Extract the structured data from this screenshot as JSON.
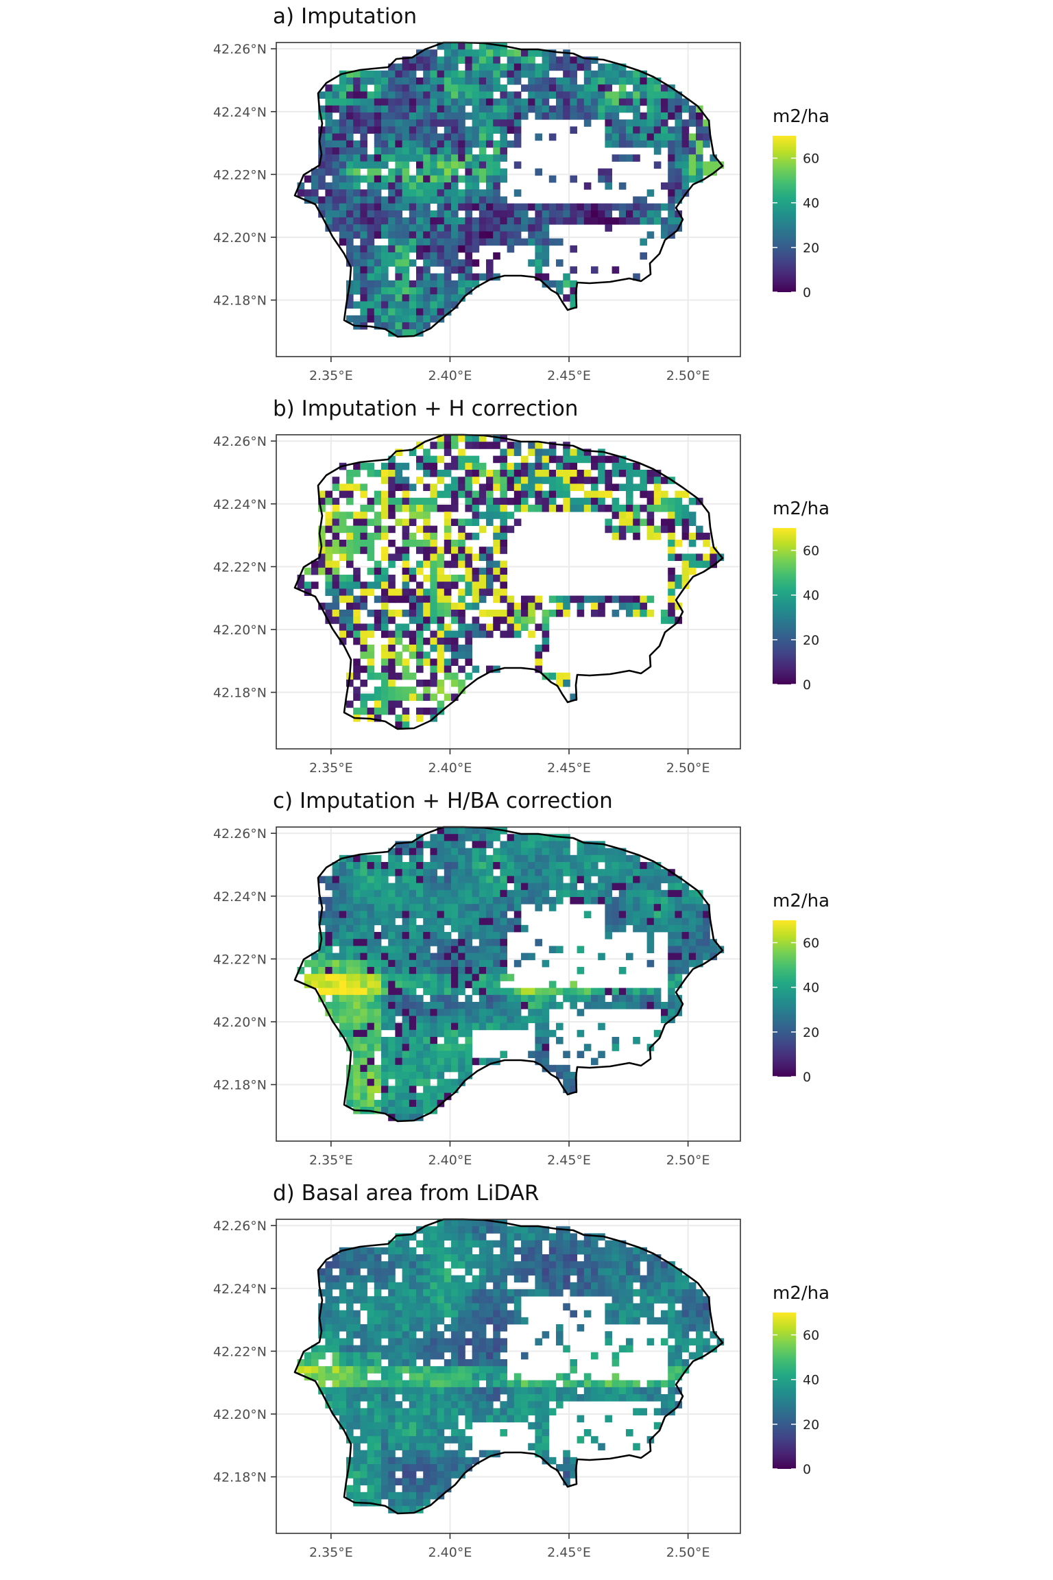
{
  "figure": {
    "panels": [
      {
        "id": "a",
        "title": "a) Imputation",
        "seed": 11,
        "mode": "imputation"
      },
      {
        "id": "b",
        "title": "b) Imputation + H correction",
        "seed": 29,
        "mode": "h_correction"
      },
      {
        "id": "c",
        "title": "c) Imputation + H/BA correction",
        "seed": 47,
        "mode": "hba_correction"
      },
      {
        "id": "d",
        "title": "d) Basal area from LiDAR",
        "seed": 83,
        "mode": "lidar"
      }
    ],
    "x_ticks": [
      "2.35°E",
      "2.40°E",
      "2.45°E",
      "2.50°E"
    ],
    "x_tick_values": [
      2.35,
      2.4,
      2.45,
      2.5
    ],
    "y_ticks": [
      "42.26°N",
      "42.24°N",
      "42.22°N",
      "42.20°N",
      "42.18°N"
    ],
    "y_tick_values": [
      42.26,
      42.24,
      42.22,
      42.2,
      42.18
    ],
    "x_range": [
      2.327,
      2.522
    ],
    "y_range": [
      42.162,
      42.262
    ],
    "legend": {
      "title": "m2/ha",
      "labels": [
        "60",
        "40",
        "20",
        "0"
      ],
      "values": [
        60,
        40,
        20,
        0
      ],
      "range": [
        0,
        70
      ]
    },
    "colormap": "viridis",
    "colors": {
      "panel_border": "#333333",
      "grid": "#ebebeb",
      "boundary": "#000000",
      "text": "#4d4d4d",
      "title": "#111111"
    }
  }
}
